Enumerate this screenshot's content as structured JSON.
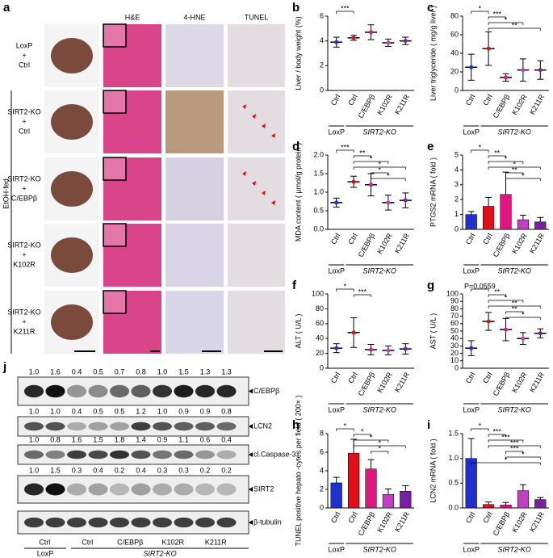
{
  "panel_a": {
    "letter": "a",
    "side_label": "EtOH-fed",
    "columns": [
      "H&E",
      "4-HNE",
      "TUNEL"
    ],
    "rows": [
      [
        "LoxP",
        "+",
        "Ctrl"
      ],
      [
        "SIRT2-KO",
        "+",
        "Ctrl"
      ],
      [
        "SIRT2-KO",
        "+",
        "C/EBPβ"
      ],
      [
        "SIRT2-KO",
        "+",
        "K102R"
      ],
      [
        "SIRT2-KO",
        "+",
        "K211R"
      ]
    ]
  },
  "panel_j": {
    "letter": "j",
    "blots": [
      {
        "label": "C/EBPβ",
        "numbers": [
          "1.0",
          "1.6",
          "0.4",
          "0.5",
          "0.7",
          "0.8",
          "1.0",
          "1.5",
          "1.3",
          "1.3"
        ]
      },
      {
        "label": "LCN2",
        "numbers": [
          "1.0",
          "1.0",
          "0.4",
          "0.5",
          "0.5",
          "1.2",
          "1.0",
          "0.9",
          "0.9",
          "0.8"
        ]
      },
      {
        "label": "cl.Caspase-3",
        "numbers": [
          "1.0",
          "0.8",
          "1.6",
          "1.5",
          "1.8",
          "1.4",
          "0.9",
          "1.1",
          "0.6",
          "0.4"
        ]
      },
      {
        "label": "SIRT2",
        "numbers": [
          "1.0",
          "1.5",
          "0.3",
          "0.4",
          "0.2",
          "0.4",
          "0.3",
          "0.3",
          "0.2",
          "0.2"
        ]
      },
      {
        "label": "β-tubulin"
      }
    ],
    "lanes": [
      "Ctrl",
      "Ctrl",
      "C/EBPβ",
      "K102R",
      "K211R"
    ],
    "groups": [
      "LoxP",
      "SIRT2-KO"
    ]
  },
  "chart_data": [
    {
      "panel": "b",
      "type": "dot",
      "ylabel": "Liver / body weight (%)",
      "categories": [
        "Ctrl",
        "Ctrl",
        "C/EBPβ",
        "K102R",
        "K211R"
      ],
      "groups": [
        "LoxP",
        "SIRT2-KO"
      ],
      "colors": [
        "#1f2fd0",
        "#e0101a",
        "#e0157f",
        "#c040c0",
        "#7a1fa0"
      ],
      "values": [
        3.9,
        4.25,
        4.7,
        3.85,
        4.0
      ],
      "errors": [
        0.4,
        0.2,
        0.6,
        0.3,
        0.3
      ],
      "ylim": [
        0,
        6
      ],
      "yticks": [
        0,
        2,
        4,
        6
      ],
      "annotations": [
        "***"
      ]
    },
    {
      "panel": "c",
      "type": "dot",
      "ylabel": "Liver triglyceride ( mg/g liver )",
      "categories": [
        "Ctrl",
        "Ctrl",
        "C/EBPβ",
        "K102R",
        "K211R"
      ],
      "groups": [
        "LoxP",
        "SIRT2-KO"
      ],
      "colors": [
        "#1f2fd0",
        "#e0101a",
        "#e0157f",
        "#c040c0",
        "#7a1fa0"
      ],
      "values": [
        25,
        45,
        14,
        22,
        22
      ],
      "errors": [
        14,
        18,
        4,
        12,
        10
      ],
      "ylim": [
        0,
        80
      ],
      "yticks": [
        0,
        20,
        40,
        60,
        80
      ],
      "annotations": [
        "*",
        "***",
        "*",
        "**"
      ]
    },
    {
      "panel": "d",
      "type": "dot",
      "ylabel": "MDA content ( μmol/g protein )",
      "categories": [
        "Ctrl",
        "Ctrl",
        "C/EBPβ",
        "K102R",
        "K211R"
      ],
      "groups": [
        "LoxP",
        "SIRT2-KO"
      ],
      "colors": [
        "#1f2fd0",
        "#e0101a",
        "#e0157f",
        "#c040c0",
        "#7a1fa0"
      ],
      "values": [
        0.72,
        1.28,
        1.2,
        0.72,
        0.78
      ],
      "errors": [
        0.12,
        0.15,
        0.3,
        0.2,
        0.2
      ],
      "ylim": [
        0,
        2
      ],
      "yticks": [
        {
          "value": 0,
          "label": "0.0"
        },
        0.5,
        {
          "value": 1,
          "label": "1.0"
        },
        1.5,
        {
          "value": 2,
          "label": "2.0"
        }
      ],
      "annotations": [
        "***",
        "**",
        "*",
        "*",
        "*",
        "*"
      ]
    },
    {
      "panel": "e",
      "type": "bar",
      "ylabel": "PTGS2 mRNA ( fold )",
      "categories": [
        "Ctrl",
        "Ctrl",
        "C/EBPβ",
        "K102R",
        "K211R"
      ],
      "groups": [
        "LoxP",
        "SIRT2-KO"
      ],
      "colors": [
        "#1f2fd0",
        "#e0101a",
        "#e0157f",
        "#c040c0",
        "#7a1fa0"
      ],
      "values": [
        1.0,
        1.55,
        2.35,
        0.65,
        0.5
      ],
      "errors": [
        0.2,
        0.6,
        1.5,
        0.3,
        0.3
      ],
      "ylim": [
        0,
        5
      ],
      "yticks": [
        0,
        1,
        2,
        3,
        4,
        5
      ],
      "annotations": [
        "*",
        "**",
        "*",
        "*",
        "**",
        "*"
      ]
    },
    {
      "panel": "f",
      "type": "dot",
      "ylabel": "ALT ( U/L )",
      "categories": [
        "Ctrl",
        "Ctrl",
        "C/EBPβ",
        "K102R",
        "K211R"
      ],
      "groups": [
        "LoxP",
        "SIRT2-KO"
      ],
      "colors": [
        "#1f2fd0",
        "#e0101a",
        "#e0157f",
        "#c040c0",
        "#7a1fa0"
      ],
      "values": [
        27,
        48,
        25,
        24,
        26
      ],
      "errors": [
        6,
        20,
        7,
        6,
        7
      ],
      "ylim": [
        0,
        100
      ],
      "yticks": [
        0,
        20,
        40,
        60,
        80,
        100
      ],
      "annotations": [
        "*",
        "***"
      ]
    },
    {
      "panel": "g",
      "type": "dot",
      "ylabel": "AST ( U/L )",
      "categories": [
        "Ctrl",
        "Ctrl",
        "C/EBPβ",
        "K102R",
        "K211R"
      ],
      "groups": [
        "LoxP",
        "SIRT2-KO"
      ],
      "colors": [
        "#1f2fd0",
        "#e0101a",
        "#e0157f",
        "#c040c0",
        "#7a1fa0"
      ],
      "values": [
        27,
        63,
        52,
        40,
        47
      ],
      "errors": [
        10,
        12,
        15,
        8,
        6
      ],
      "ylim": [
        0,
        100
      ],
      "yticks": [
        0,
        10,
        20,
        30,
        40,
        50,
        60,
        70,
        80,
        90,
        100
      ],
      "annotations": [
        "P=0.0559",
        "**",
        "*",
        "**",
        "**",
        "*"
      ]
    },
    {
      "panel": "h",
      "type": "bar",
      "ylabel": "TUNEL positive hepato -cytes per field ( 200× )",
      "categories": [
        "Ctrl",
        "Ctrl",
        "C/EBPβ",
        "K102R",
        "K211R"
      ],
      "groups": [
        "LoxP",
        "SIRT2-KO"
      ],
      "colors": [
        "#1f2fd0",
        "#e0101a",
        "#e0157f",
        "#c040c0",
        "#7a1fa0"
      ],
      "values": [
        2.7,
        5.9,
        4.2,
        1.45,
        1.8
      ],
      "errors": [
        0.6,
        1.5,
        1.0,
        0.6,
        0.6
      ],
      "ylim": [
        0,
        8
      ],
      "yticks": [
        0,
        2,
        4,
        6,
        8
      ],
      "annotations": [
        "*",
        "*",
        "*",
        "*",
        "*"
      ]
    },
    {
      "panel": "i",
      "type": "bar",
      "ylabel": "LCN2 mRNA ( fold )",
      "categories": [
        "Ctrl",
        "Ctrl",
        "C/EBPβ",
        "K102R",
        "K211R"
      ],
      "groups": [
        "LoxP",
        "SIRT2-KO"
      ],
      "colors": [
        "#1f2fd0",
        "#e0101a",
        "#e0157f",
        "#c040c0",
        "#7a1fa0"
      ],
      "values": [
        1.0,
        0.07,
        0.06,
        0.35,
        0.17
      ],
      "errors": [
        0.4,
        0.05,
        0.05,
        0.12,
        0.04
      ],
      "ylim": [
        0,
        1.5
      ],
      "yticks": [
        {
          "value": 0,
          "label": "0.0"
        },
        0.5,
        {
          "value": 1,
          "label": "1.0"
        },
        1.5
      ],
      "annotations": [
        "*",
        "***",
        "***",
        "***",
        "***",
        "*",
        "*"
      ]
    }
  ]
}
